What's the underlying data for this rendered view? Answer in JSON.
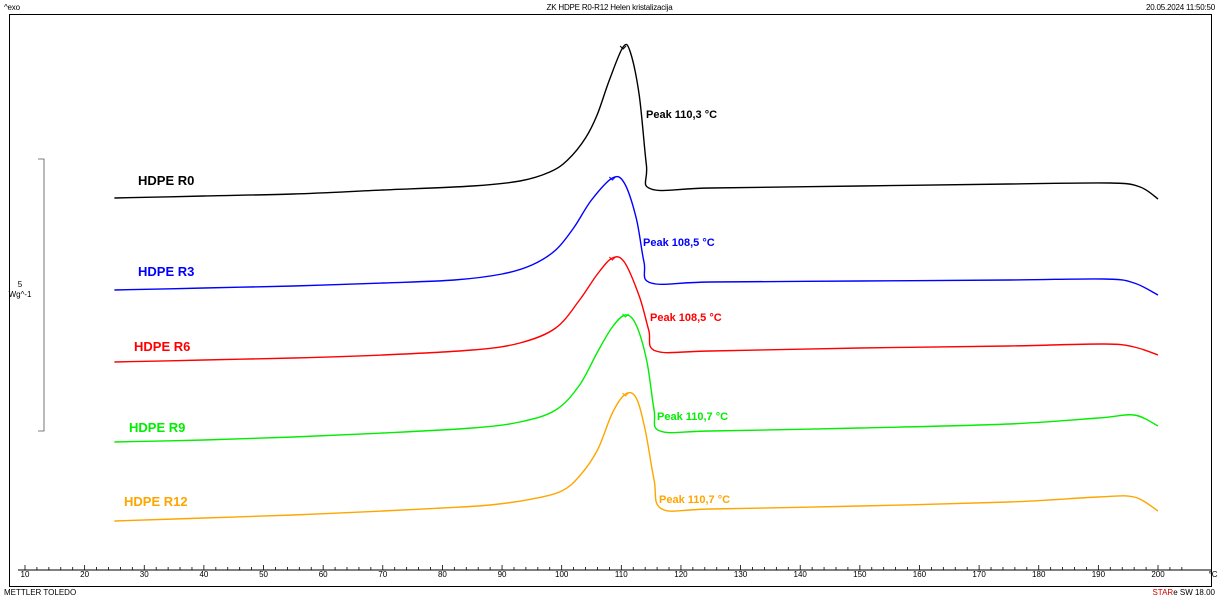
{
  "header": {
    "left": "^exo",
    "title": "ZK HDPE R0-R12 Helen kristalizacija",
    "date": "20.05.2024 11:50:50"
  },
  "footer": {
    "left": "METTLER TOLEDO",
    "right_star": "STAR",
    "right_rest": "e SW 18.00"
  },
  "scale_bar": {
    "value": "5",
    "unit": "Wg^-1"
  },
  "chart_data": {
    "type": "line",
    "title": "ZK HDPE R0-R12 Helen kristalizacija",
    "xlabel": "",
    "x_unit": "°C",
    "ylabel": "",
    "xlim": [
      10,
      200
    ],
    "x_ticks": [
      10,
      20,
      30,
      40,
      50,
      60,
      70,
      80,
      90,
      100,
      110,
      120,
      130,
      140,
      150,
      160,
      170,
      180,
      190,
      200
    ],
    "grid": false,
    "legend": "none",
    "series": [
      {
        "name": "HDPE R0",
        "color": "#000000",
        "peak_label": "Peak",
        "peak_value": "110,3 °C",
        "points": [
          [
            25,
            198
          ],
          [
            40,
            196
          ],
          [
            55,
            194
          ],
          [
            70,
            190
          ],
          [
            85,
            186
          ],
          [
            93,
            181
          ],
          [
            98,
            172
          ],
          [
            101,
            160
          ],
          [
            104,
            138
          ],
          [
            106,
            114
          ],
          [
            108,
            80
          ],
          [
            110.3,
            47
          ],
          [
            111.5,
            52
          ],
          [
            113,
            95
          ],
          [
            114.2,
            165
          ],
          [
            115,
            189
          ],
          [
            125,
            188
          ],
          [
            150,
            186
          ],
          [
            175,
            184
          ],
          [
            192,
            183
          ],
          [
            197,
            187
          ],
          [
            200,
            199
          ]
        ]
      },
      {
        "name": "HDPE R3",
        "color": "#0000ff",
        "peak_label": "Peak",
        "peak_value": "108,5 °C",
        "points": [
          [
            25,
            290
          ],
          [
            40,
            288
          ],
          [
            55,
            286
          ],
          [
            70,
            283
          ],
          [
            82,
            280
          ],
          [
            90,
            274
          ],
          [
            95,
            265
          ],
          [
            99,
            250
          ],
          [
            102,
            228
          ],
          [
            105,
            200
          ],
          [
            108.5,
            178
          ],
          [
            110.5,
            183
          ],
          [
            112.5,
            218
          ],
          [
            113.8,
            262
          ],
          [
            115,
            283
          ],
          [
            125,
            282
          ],
          [
            150,
            281
          ],
          [
            175,
            280
          ],
          [
            191,
            279
          ],
          [
            196,
            283
          ],
          [
            200,
            295
          ]
        ]
      },
      {
        "name": "HDPE R6",
        "color": "#ff0000",
        "peak_label": "Peak",
        "peak_value": "108,5 °C",
        "points": [
          [
            25,
            362
          ],
          [
            40,
            360
          ],
          [
            55,
            358
          ],
          [
            70,
            355
          ],
          [
            85,
            350
          ],
          [
            93,
            343
          ],
          [
            99,
            328
          ],
          [
            103,
            300
          ],
          [
            106,
            274
          ],
          [
            108.5,
            258
          ],
          [
            110.5,
            262
          ],
          [
            113,
            296
          ],
          [
            114.6,
            330
          ],
          [
            115.8,
            351
          ],
          [
            125,
            351
          ],
          [
            150,
            348
          ],
          [
            175,
            346
          ],
          [
            191,
            344
          ],
          [
            196,
            347
          ],
          [
            200,
            355
          ]
        ]
      },
      {
        "name": "HDPE R9",
        "color": "#00ee00",
        "peak_label": "Peak",
        "peak_value": "110,7 °C",
        "points": [
          [
            25,
            442
          ],
          [
            40,
            440
          ],
          [
            55,
            437
          ],
          [
            70,
            433
          ],
          [
            85,
            428
          ],
          [
            93,
            422
          ],
          [
            99,
            410
          ],
          [
            103,
            385
          ],
          [
            106,
            352
          ],
          [
            108.5,
            327
          ],
          [
            110.7,
            315
          ],
          [
            112.5,
            325
          ],
          [
            114.3,
            362
          ],
          [
            115.5,
            410
          ],
          [
            116.5,
            431
          ],
          [
            125,
            431
          ],
          [
            150,
            428
          ],
          [
            175,
            424
          ],
          [
            190,
            418
          ],
          [
            196,
            415
          ],
          [
            200,
            426
          ]
        ]
      },
      {
        "name": "HDPE R12",
        "color": "#ffa500",
        "peak_label": "Peak",
        "peak_value": "110,7 °C",
        "points": [
          [
            25,
            521
          ],
          [
            40,
            518
          ],
          [
            55,
            515
          ],
          [
            70,
            511
          ],
          [
            80,
            508
          ],
          [
            88,
            505
          ],
          [
            95,
            499
          ],
          [
            100,
            491
          ],
          [
            103,
            476
          ],
          [
            106,
            450
          ],
          [
            108.5,
            413
          ],
          [
            110.7,
            394
          ],
          [
            112.5,
            398
          ],
          [
            114,
            430
          ],
          [
            115.5,
            480
          ],
          [
            116.8,
            509
          ],
          [
            125,
            509
          ],
          [
            150,
            506
          ],
          [
            175,
            502
          ],
          [
            190,
            497
          ],
          [
            196,
            497
          ],
          [
            200,
            511
          ]
        ]
      }
    ]
  }
}
